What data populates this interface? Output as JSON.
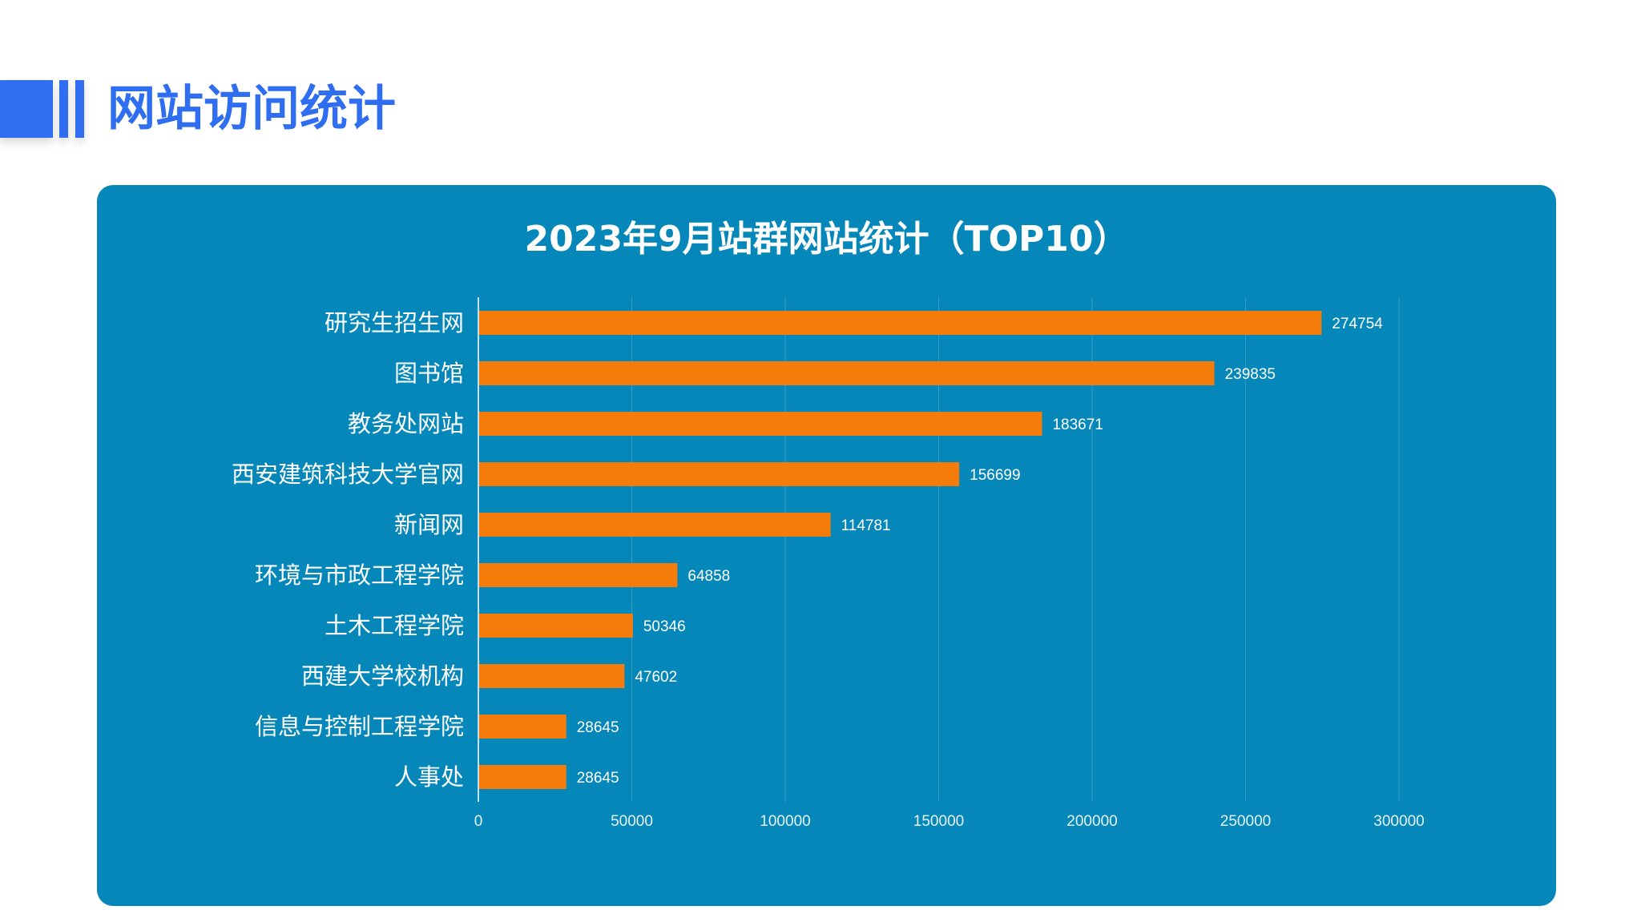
{
  "page": {
    "title": "网站访问统计",
    "accent_color": "#2f6ef0",
    "panel_color": "#0587b9",
    "bar_color": "#f57c0a"
  },
  "chart_data": {
    "type": "bar",
    "orientation": "horizontal",
    "title": "2023年9月站群网站统计（TOP10）",
    "xlabel": "",
    "ylabel": "",
    "categories": [
      "研究生招生网",
      "图书馆",
      "教务处网站",
      "西安建筑科技大学官网",
      "新闻网",
      "环境与市政工程学院",
      "土木工程学院",
      "西建大学校机构",
      "信息与控制工程学院",
      "人事处"
    ],
    "values": [
      274754,
      239835,
      183671,
      156699,
      114781,
      64858,
      50346,
      47602,
      28645,
      28645
    ],
    "xlim": [
      0,
      300000
    ],
    "xticks": [
      "0",
      "50000",
      "100000",
      "150000",
      "200000",
      "250000",
      "300000"
    ],
    "grid": true,
    "data_labels": true
  }
}
